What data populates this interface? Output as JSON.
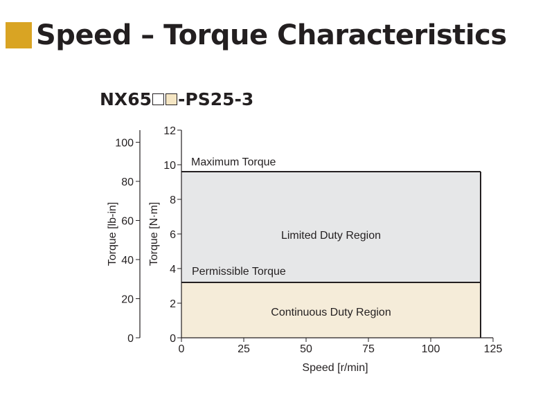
{
  "header": {
    "title": "Speed – Torque Characteristics",
    "accent_color": "#d9a423"
  },
  "model": {
    "prefix": "NX65",
    "suffix": "-PS25-3",
    "box_colors": [
      "#ffffff",
      "#f5e6c4"
    ]
  },
  "chart_data": {
    "type": "area",
    "xlabel": "Speed [r/min]",
    "ylabel": "Torque [N·m]",
    "ylabel_secondary": "Torque [lb-in]",
    "xlim": [
      0,
      125
    ],
    "ylim": [
      0,
      12
    ],
    "ylim_secondary": [
      0,
      106.2
    ],
    "x_ticks": [
      0,
      25,
      50,
      75,
      100,
      125
    ],
    "y_ticks": [
      0,
      2,
      4,
      6,
      8,
      10,
      12
    ],
    "y_ticks_secondary": [
      0,
      20,
      40,
      60,
      80,
      100
    ],
    "grid": false,
    "series": [
      {
        "name": "Maximum Torque",
        "x": [
          0,
          120
        ],
        "y": [
          9.6,
          9.6
        ],
        "fill": "#e6e7e8"
      },
      {
        "name": "Permissible Torque",
        "x": [
          0,
          120
        ],
        "y": [
          3.2,
          3.2
        ],
        "fill": "#f5ecd9"
      }
    ],
    "annotations": [
      "Limited Duty Region",
      "Continuous Duty Region"
    ]
  }
}
